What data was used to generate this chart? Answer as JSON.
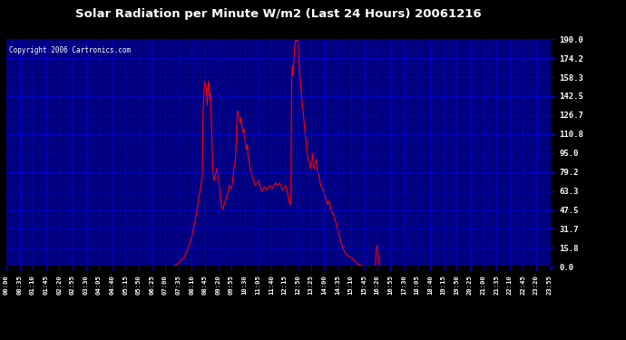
{
  "title": "Solar Radiation per Minute W/m2 (Last 24 Hours) 20061216",
  "copyright_text": "Copyright 2006 Cartronics.com",
  "background_color": "#000080",
  "line_color": "#FF0000",
  "grid_color": "#0000FF",
  "text_color": "#FFFFFF",
  "border_color": "#000000",
  "yticks": [
    0.0,
    15.8,
    31.7,
    47.5,
    63.3,
    79.2,
    95.0,
    110.8,
    126.7,
    142.5,
    158.3,
    174.2,
    190.0
  ],
  "ymax": 190.0,
  "ymin": 0.0,
  "xtick_labels": [
    "00:00",
    "00:35",
    "01:10",
    "01:45",
    "02:20",
    "02:55",
    "03:30",
    "04:05",
    "04:40",
    "05:15",
    "05:50",
    "06:25",
    "07:00",
    "07:35",
    "08:10",
    "08:45",
    "09:20",
    "09:55",
    "10:30",
    "11:05",
    "11:40",
    "12:15",
    "12:50",
    "13:25",
    "14:00",
    "14:35",
    "15:10",
    "15:45",
    "16:20",
    "16:55",
    "17:30",
    "18:05",
    "18:40",
    "19:15",
    "19:50",
    "20:25",
    "21:00",
    "21:35",
    "22:10",
    "22:45",
    "23:20",
    "23:55"
  ]
}
